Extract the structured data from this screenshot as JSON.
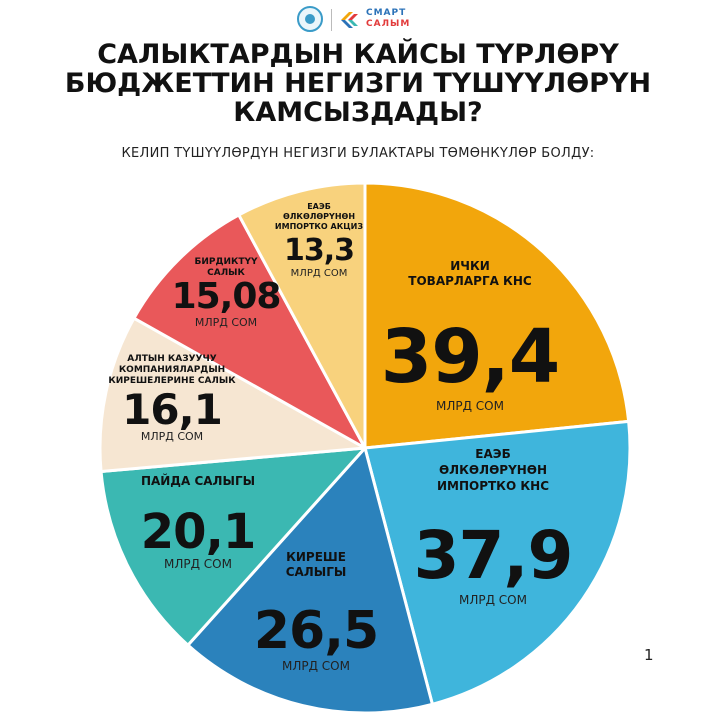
{
  "header": {
    "brand_line1": "СМАРТ",
    "brand_line2": "САЛЫМ"
  },
  "title": "САЛЫКТАРДЫН КАЙСЫ ТҮРЛӨРҮ БЮДЖЕТТИН НЕГИЗГИ ТҮШҮҮЛӨРҮН КАМСЫЗДАДЫ?",
  "subtitle": "КЕЛИП ТҮШҮҮЛӨРДҮН НЕГИЗГИ БУЛАКТАРЫ ТӨМӨНКҮЛӨР БОЛДУ:",
  "page_number": "1",
  "chart_data": {
    "type": "pie",
    "title": "",
    "unit": "МЛРД СОМ",
    "slices": [
      {
        "name_lines": [
          "ИЧКИ",
          "ТОВАРЛАРГА КНС"
        ],
        "value": 39.4,
        "label": "39,4",
        "color": "#f2a60c"
      },
      {
        "name_lines": [
          "ЕАЭБ",
          "ӨЛКӨЛӨРҮНӨН",
          "ИМПОРТКО КНС"
        ],
        "value": 37.9,
        "label": "37,9",
        "color": "#3fb5dc"
      },
      {
        "name_lines": [
          "КИРЕШЕ",
          "САЛЫГЫ"
        ],
        "value": 26.5,
        "label": "26,5",
        "color": "#2b82bc"
      },
      {
        "name_lines": [
          "ПАЙДА САЛЫГЫ"
        ],
        "value": 20.1,
        "label": "20,1",
        "color": "#3bb8b2"
      },
      {
        "name_lines": [
          "АЛТЫН КАЗУУЧУ",
          "КОМПАНИЯЛАРДЫН",
          "КИРЕШЕЛЕРИНЕ САЛЫК"
        ],
        "value": 16.1,
        "label": "16,1",
        "color": "#f6e6d2"
      },
      {
        "name_lines": [
          "БИРДИКТҮҮ",
          "САЛЫК"
        ],
        "value": 15.08,
        "label": "15,08",
        "color": "#e9585a"
      },
      {
        "name_lines": [
          "ЕАЭБ",
          "ӨЛКӨЛӨРҮНӨН",
          "ИМПОРТКО АКЦИЗ"
        ],
        "value": 13.3,
        "label": "13,3",
        "color": "#f8d27d"
      }
    ]
  }
}
